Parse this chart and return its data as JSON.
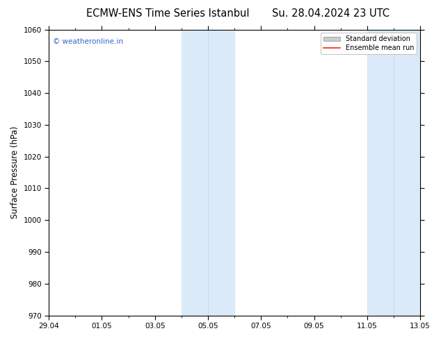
{
  "title_left": "ECMW-ENS Time Series Istanbul",
  "title_right": "Su. 28.04.2024 23 UTC",
  "ylabel": "Surface Pressure (hPa)",
  "ylim": [
    970,
    1060
  ],
  "yticks": [
    970,
    980,
    990,
    1000,
    1010,
    1020,
    1030,
    1040,
    1050,
    1060
  ],
  "xtick_major_labels": [
    "29.04",
    "01.05",
    "03.05",
    "05.05",
    "07.05",
    "09.05",
    "11.05",
    "13.05"
  ],
  "xtick_major_positions": [
    0,
    2,
    4,
    6,
    8,
    10,
    12,
    14
  ],
  "xlim": [
    0,
    14
  ],
  "shaded_bands": [
    {
      "x_start": 5.0,
      "x_end": 6.0
    },
    {
      "x_start": 6.0,
      "x_end": 7.0
    },
    {
      "x_start": 12.0,
      "x_end": 13.0
    },
    {
      "x_start": 13.0,
      "x_end": 14.0
    }
  ],
  "shaded_colors": [
    "#cfe0f0",
    "#daeaf8",
    "#daeaf8",
    "#cfe0f0"
  ],
  "shaded_color": "#daeaf8",
  "copyright_text": "© weatheronline.in",
  "copyright_color": "#3366cc",
  "legend_std_color": "#cccccc",
  "legend_mean_color": "#ff2200",
  "background_color": "#ffffff",
  "plot_bg_color": "#ffffff",
  "title_fontsize": 10.5,
  "tick_fontsize": 7.5,
  "ylabel_fontsize": 8.5
}
